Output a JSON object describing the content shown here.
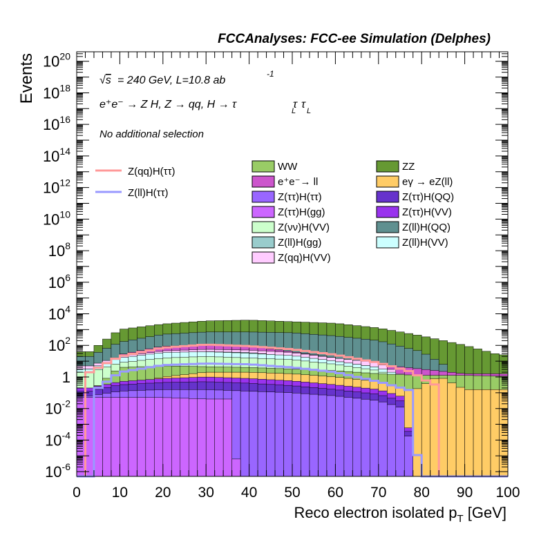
{
  "chart_data": {
    "type": "bar",
    "title": "FCCAnalyses: FCC-ee Simulation (Delphes)",
    "xlabel": "Reco electron isolated p",
    "xlabel_sub": "T",
    "xlabel_unit": " [GeV]",
    "ylabel": "Events",
    "xlim": [
      0,
      100
    ],
    "ylim_log10": [
      -6.3,
      20.6
    ],
    "yscale": "log",
    "x_ticks": [
      "0",
      "10",
      "20",
      "30",
      "40",
      "50",
      "60",
      "70",
      "80",
      "90",
      "100"
    ],
    "y_tick_exponents": [
      20,
      18,
      16,
      14,
      12,
      10,
      8,
      6,
      4,
      2,
      0,
      -2,
      -4,
      -6
    ],
    "annotations": {
      "energy": "= 240 GeV, L=10.8 ab",
      "energy_sup": "-1",
      "process": "e⁺e⁻ → Z H, Z → qq, H → τ",
      "selection": "No additional selection"
    },
    "bins": {
      "width": 2,
      "start": 0,
      "count": 50
    },
    "stack": [
      {
        "name": "WW",
        "color": "#99cc66",
        "kind": "ww"
      },
      {
        "name": "ZZ",
        "color": "#669933",
        "kind": "zz"
      },
      {
        "name": "e⁺e⁻→ ll",
        "color": "#cc55cc",
        "kind": "ll"
      },
      {
        "name": "eγ → eZ(ll)",
        "color": "#ffcc66",
        "kind": "ez"
      },
      {
        "name": "Z(ττ)H(ττ)",
        "color": "#9966ff",
        "kind": "zt_htt"
      },
      {
        "name": "Z(ττ)H(QQ)",
        "color": "#6633cc",
        "kind": "zt_hqq"
      },
      {
        "name": "Z(ττ)H(gg)",
        "color": "#cc66ff",
        "kind": "zt_hgg"
      },
      {
        "name": "Z(ττ)H(VV)",
        "color": "#9933ee",
        "kind": "zt_hvv"
      },
      {
        "name": "Z(νν)H(VV)",
        "color": "#ccffcc",
        "kind": "znn_hvv"
      },
      {
        "name": "Z(ll)H(QQ)",
        "color": "#5f9090",
        "kind": "zll_hqq"
      },
      {
        "name": "Z(ll)H(gg)",
        "color": "#99cccc",
        "kind": "zll_hgg"
      },
      {
        "name": "Z(ll)H(VV)",
        "color": "#ccffff",
        "kind": "zll_hvv"
      },
      {
        "name": "Z(qq)H(VV)",
        "color": "#ffccff",
        "kind": "zqq_hvv"
      }
    ],
    "signals": [
      {
        "name": "Z(qq)H(ττ)",
        "color": "#ff9999",
        "kind": "sig_qq"
      },
      {
        "name": "Z(ll)H(ττ)",
        "color": "#9999ff",
        "kind": "sig_ll"
      }
    ],
    "grid": false,
    "legend_position": "upper middle"
  }
}
